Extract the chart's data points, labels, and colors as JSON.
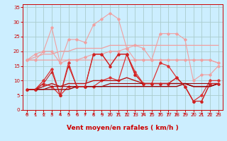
{
  "background_color": "#cceeff",
  "grid_color": "#aacccc",
  "xlabel": "Vent moyen/en rafales ( km/h )",
  "x": [
    0,
    1,
    2,
    3,
    4,
    5,
    6,
    7,
    8,
    9,
    10,
    11,
    12,
    13,
    14,
    15,
    16,
    17,
    18,
    19,
    20,
    21,
    22,
    23
  ],
  "series": [
    {
      "name": "rafales_envelope_top",
      "color": "#f0a0a0",
      "lw": 0.8,
      "marker": "D",
      "ms": 1.8,
      "y": [
        17,
        17,
        20,
        28,
        16,
        24,
        24,
        23,
        29,
        31,
        33,
        31,
        21,
        22,
        21,
        17,
        26,
        26,
        26,
        24,
        10,
        12,
        12,
        15
      ]
    },
    {
      "name": "rafales_envelope_bottom",
      "color": "#f0a0a0",
      "lw": 0.8,
      "marker": "D",
      "ms": 1.8,
      "y": [
        17,
        19,
        20,
        20,
        16,
        17,
        17,
        18,
        19,
        19,
        20,
        20,
        21,
        17,
        17,
        17,
        17,
        17,
        17,
        17,
        17,
        17,
        17,
        16
      ]
    },
    {
      "name": "rafales_trend",
      "color": "#f0a0a0",
      "lw": 0.9,
      "marker": null,
      "ms": 0,
      "y": [
        17,
        18,
        19,
        19,
        20,
        20,
        21,
        21,
        21,
        21,
        22,
        22,
        22,
        22,
        22,
        22,
        22,
        22,
        22,
        22,
        22,
        22,
        22,
        22
      ]
    },
    {
      "name": "rafales_trend2",
      "color": "#f0a0a0",
      "lw": 0.9,
      "marker": null,
      "ms": 0,
      "y": [
        17,
        17,
        17,
        17,
        17,
        17,
        17,
        17,
        17,
        17,
        17,
        17,
        17,
        17,
        17,
        17,
        17,
        17,
        17,
        17,
        17,
        17,
        17,
        16
      ]
    },
    {
      "name": "vent_moyen1",
      "color": "#dd3333",
      "lw": 0.9,
      "marker": "D",
      "ms": 1.8,
      "y": [
        7,
        7,
        9,
        8,
        5,
        8,
        8,
        8,
        8,
        10,
        11,
        10,
        19,
        12,
        9,
        9,
        16,
        15,
        11,
        8,
        3,
        5,
        10,
        10
      ]
    },
    {
      "name": "vent_moyen2",
      "color": "#dd3333",
      "lw": 0.9,
      "marker": "D",
      "ms": 1.8,
      "y": [
        7,
        7,
        10,
        14,
        5,
        16,
        8,
        8,
        19,
        19,
        15,
        19,
        19,
        13,
        9,
        9,
        9,
        9,
        11,
        8,
        3,
        3,
        9,
        9
      ]
    },
    {
      "name": "vent_trend1",
      "color": "#bb1111",
      "lw": 1.0,
      "marker": null,
      "ms": 0,
      "y": [
        7,
        7,
        8,
        9,
        8,
        9,
        9,
        9,
        10,
        10,
        10,
        10,
        11,
        10,
        9,
        9,
        9,
        9,
        9,
        9,
        8,
        8,
        8,
        9
      ]
    },
    {
      "name": "vent_trend2",
      "color": "#990000",
      "lw": 1.0,
      "marker": null,
      "ms": 0,
      "y": [
        7,
        7,
        7,
        7,
        7,
        7,
        8,
        8,
        8,
        8,
        8,
        8,
        8,
        8,
        8,
        8,
        8,
        8,
        8,
        9,
        8,
        8,
        8,
        9
      ]
    },
    {
      "name": "vent_trend3",
      "color": "#990000",
      "lw": 0.8,
      "marker": null,
      "ms": 0,
      "y": [
        7,
        7,
        7,
        8,
        8,
        8,
        8,
        8,
        8,
        8,
        9,
        9,
        9,
        9,
        9,
        9,
        9,
        9,
        9,
        9,
        9,
        9,
        9,
        9
      ]
    },
    {
      "name": "vent_moyen3",
      "color": "#cc2222",
      "lw": 0.8,
      "marker": "^",
      "ms": 2.0,
      "y": [
        7,
        7,
        9,
        13,
        5,
        15,
        8,
        8,
        19,
        19,
        15,
        19,
        19,
        12,
        9,
        9,
        9,
        9,
        11,
        8,
        3,
        3,
        9,
        9
      ]
    }
  ],
  "arrow_color": "#cc0000",
  "ylim": [
    0,
    36
  ],
  "xlim": [
    -0.5,
    23.5
  ],
  "yticks": [
    0,
    5,
    10,
    15,
    20,
    25,
    30,
    35
  ],
  "xticks": [
    0,
    1,
    2,
    3,
    4,
    5,
    6,
    7,
    8,
    9,
    10,
    11,
    12,
    13,
    14,
    15,
    16,
    17,
    18,
    19,
    20,
    21,
    22,
    23
  ],
  "tick_color": "#cc0000",
  "label_color": "#cc0000",
  "tick_fontsize": 5.0,
  "xlabel_fontsize": 6.5
}
